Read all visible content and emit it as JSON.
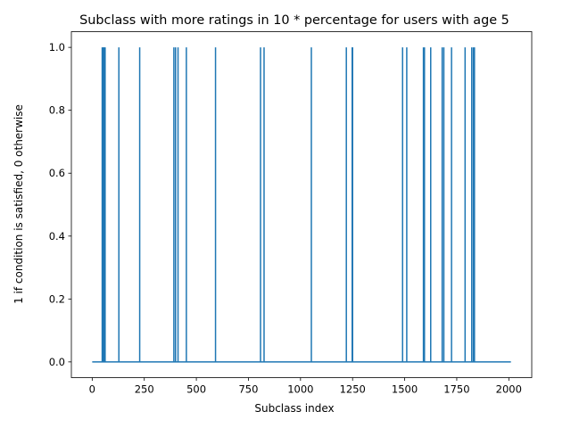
{
  "chart_data": {
    "type": "line",
    "title": "Subclass with more ratings in 10 * percentage for users with age 5",
    "xlabel": "Subclass index",
    "ylabel": "1 if condition is satisfied, 0 otherwise",
    "xlim": [
      -100,
      2110
    ],
    "ylim": [
      -0.05,
      1.05
    ],
    "x_ticks": [
      0,
      250,
      500,
      750,
      1000,
      1250,
      1500,
      1750,
      2000
    ],
    "x_tick_labels": [
      "0",
      "250",
      "500",
      "750",
      "1000",
      "1250",
      "1500",
      "1750",
      "2000"
    ],
    "y_ticks": [
      0.0,
      0.2,
      0.4,
      0.6,
      0.8,
      1.0
    ],
    "y_tick_labels": [
      "0.0",
      "0.2",
      "0.4",
      "0.6",
      "0.8",
      "1.0"
    ],
    "grid": false,
    "legend": "none",
    "x_range": [
      0,
      2010
    ],
    "baseline_value": 0,
    "spike_value": 1,
    "spike_x": [
      48,
      52,
      55,
      58,
      62,
      128,
      228,
      392,
      400,
      412,
      452,
      592,
      808,
      825,
      1052,
      1220,
      1248,
      1250,
      1490,
      1510,
      1590,
      1595,
      1625,
      1680,
      1688,
      1725,
      1790,
      1822,
      1830,
      1835
    ],
    "series_color": "#1f77b4"
  }
}
